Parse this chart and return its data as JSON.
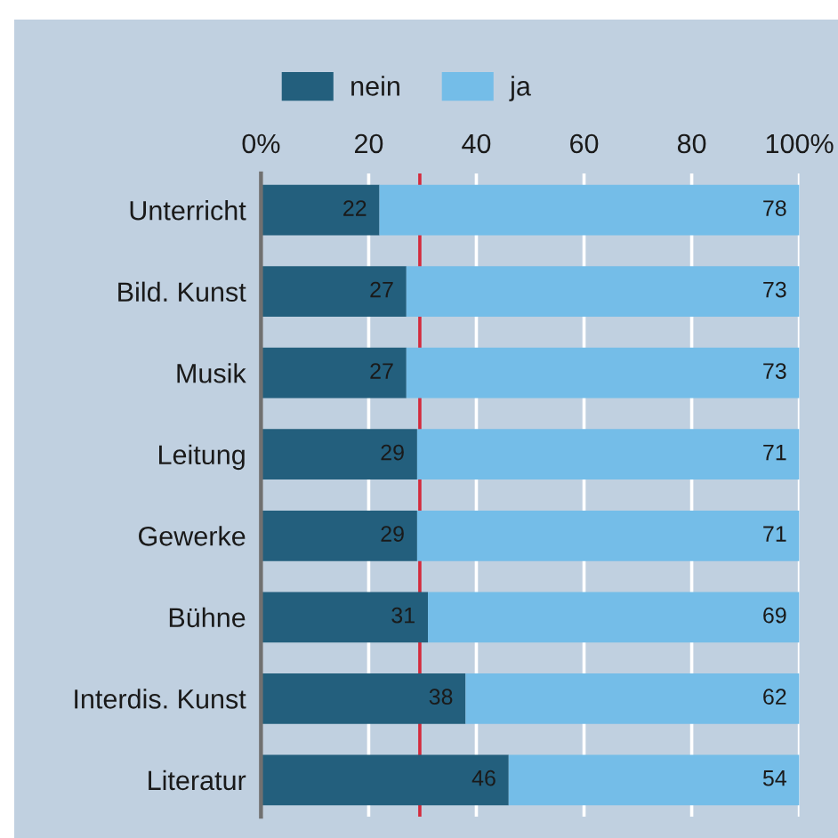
{
  "chart_data": {
    "type": "bar",
    "orientation": "horizontal",
    "stacked": true,
    "categories": [
      "Unterricht",
      "Bild. Kunst",
      "Musik",
      "Leitung",
      "Gewerke",
      "Bühne",
      "Interdis. Kunst",
      "Literatur"
    ],
    "series": [
      {
        "name": "nein",
        "color": "#235f7d",
        "values": [
          22,
          27,
          27,
          29,
          29,
          31,
          38,
          46
        ]
      },
      {
        "name": "ja",
        "color": "#74bde8",
        "values": [
          78,
          73,
          73,
          71,
          71,
          69,
          62,
          54
        ]
      }
    ],
    "xlim": [
      0,
      100
    ],
    "xticks": [
      {
        "value": 0,
        "label": "0%"
      },
      20,
      40,
      60,
      80,
      {
        "value": 100,
        "label": "100%"
      }
    ],
    "grid": "x",
    "legend": "top",
    "data_labels": true,
    "ref_lines": [
      {
        "axis": "x",
        "value": 29.5,
        "color": "#d42a3c"
      }
    ]
  }
}
